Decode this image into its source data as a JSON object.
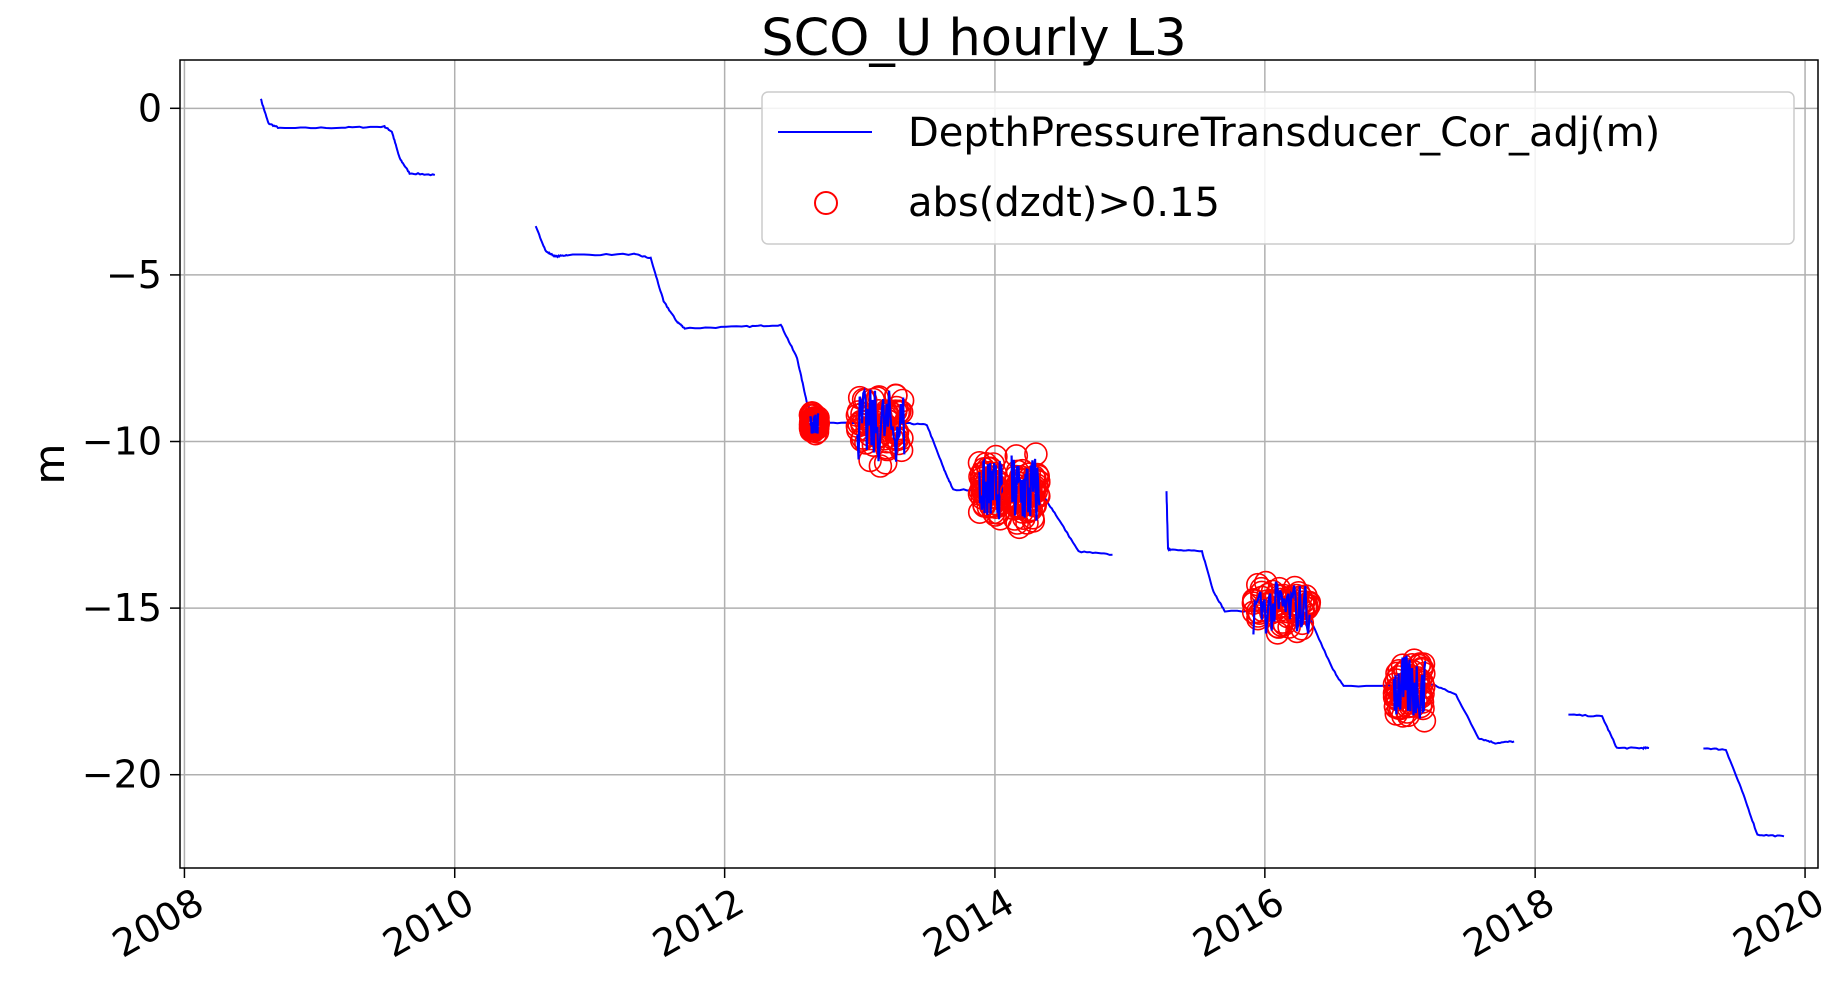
{
  "chart_data": {
    "type": "line",
    "title": "SCO_U hourly L3",
    "xlabel": "",
    "ylabel": "m",
    "xlim": [
      "2007-12-20",
      "2020-02-05"
    ],
    "ylim": [
      -22.8,
      1.45
    ],
    "x_ticks": [
      "2008",
      "2010",
      "2012",
      "2014",
      "2016",
      "2018",
      "2020"
    ],
    "y_ticks": [
      0,
      -5,
      -10,
      -15,
      -20
    ],
    "y_tick_labels": [
      "0",
      "−5",
      "−10",
      "−15",
      "−20"
    ],
    "grid": true,
    "legend_position": "top-right",
    "colors": {
      "line": "#0000ff",
      "markers": "#ff0000",
      "grid": "#b0b0b0"
    },
    "series": [
      {
        "name": "DepthPressureTransducer_Cor_adj(m)",
        "style": "line",
        "segments": [
          [
            [
              "2008-07-25",
              0.3
            ],
            [
              "2008-08-15",
              -0.45
            ],
            [
              "2008-09-15",
              -0.6
            ],
            [
              "2009-03-01",
              -0.58
            ],
            [
              "2009-06-25",
              -0.55
            ],
            [
              "2009-07-15",
              -0.7
            ],
            [
              "2009-08-05",
              -1.5
            ],
            [
              "2009-09-01",
              -1.95
            ],
            [
              "2009-11-08",
              -2.0
            ]
          ],
          [
            [
              "2010-08-08",
              -3.55
            ],
            [
              "2010-09-05",
              -4.3
            ],
            [
              "2010-10-01",
              -4.45
            ],
            [
              "2010-11-01",
              -4.4
            ],
            [
              "2011-05-01",
              -4.38
            ],
            [
              "2011-06-15",
              -4.5
            ],
            [
              "2011-07-20",
              -5.8
            ],
            [
              "2011-08-25",
              -6.4
            ],
            [
              "2011-09-15",
              -6.6
            ],
            [
              "2012-03-01",
              -6.55
            ],
            [
              "2012-06-01",
              -6.5
            ],
            [
              "2012-07-15",
              -7.5
            ],
            [
              "2012-08-10",
              -8.8
            ],
            [
              "2012-09-01",
              -9.45
            ],
            [
              "2013-01-01",
              -9.45
            ],
            [
              "2013-05-01",
              -9.45
            ],
            [
              "2013-07-01",
              -9.5
            ],
            [
              "2013-08-15",
              -10.8
            ],
            [
              "2013-09-10",
              -11.45
            ],
            [
              "2014-01-01",
              -11.45
            ],
            [
              "2014-05-01",
              -11.45
            ],
            [
              "2014-06-15",
              -12.2
            ],
            [
              "2014-08-15",
              -13.3
            ],
            [
              "2014-11-15",
              -13.4
            ]
          ],
          [
            [
              "2015-04-10",
              -11.5
            ],
            [
              "2015-04-14",
              -13.2
            ],
            [
              "2015-04-20",
              -13.25
            ],
            [
              "2015-07-15",
              -13.3
            ],
            [
              "2015-08-15",
              -14.5
            ],
            [
              "2015-09-15",
              -15.1
            ],
            [
              "2016-04-01",
              -15.05
            ],
            [
              "2016-05-01",
              -15.3
            ],
            [
              "2016-07-01",
              -16.8
            ],
            [
              "2016-08-01",
              -17.35
            ],
            [
              "2017-04-01",
              -17.3
            ],
            [
              "2017-06-01",
              -17.6
            ],
            [
              "2017-08-01",
              -18.9
            ],
            [
              "2017-09-15",
              -19.05
            ],
            [
              "2017-11-05",
              -19.0
            ]
          ],
          [
            [
              "2018-04-01",
              -18.2
            ],
            [
              "2018-07-01",
              -18.25
            ],
            [
              "2018-08-10",
              -19.2
            ],
            [
              "2018-10-15",
              -19.2
            ],
            [
              "2018-11-05",
              -19.2
            ]
          ],
          [
            [
              "2019-04-01",
              -19.2
            ],
            [
              "2019-06-01",
              -19.25
            ],
            [
              "2019-07-15",
              -20.5
            ],
            [
              "2019-08-25",
              -21.8
            ],
            [
              "2019-11-05",
              -21.85
            ]
          ]
        ]
      },
      {
        "name": "abs(dzdt)>0.15",
        "style": "scatter",
        "clusters": [
          {
            "x_start": "2012-08-20",
            "x_end": "2012-09-10",
            "y_center": -9.45,
            "y_spread": 0.35
          },
          {
            "x_start": "2012-12-25",
            "x_end": "2013-05-01",
            "y_center": -9.55,
            "y_spread": 1.25
          },
          {
            "x_start": "2013-11-20",
            "x_end": "2014-01-20",
            "y_center": -11.45,
            "y_spread": 1.0
          },
          {
            "x_start": "2014-02-15",
            "x_end": "2014-05-01",
            "y_center": -11.5,
            "y_spread": 1.25
          },
          {
            "x_start": "2015-12-01",
            "x_end": "2016-05-01",
            "y_center": -15.0,
            "y_spread": 0.9
          },
          {
            "x_start": "2016-12-15",
            "x_end": "2017-03-10",
            "y_center": -17.4,
            "y_spread": 1.1
          }
        ]
      }
    ]
  }
}
